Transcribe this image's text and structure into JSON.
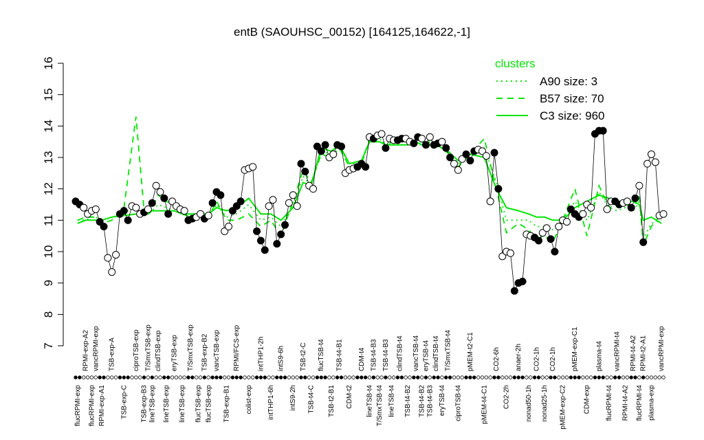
{
  "chart_data": {
    "type": "line",
    "title": "entB (SAOUHSC_00152) [164125,164622,-1]",
    "ylim": [
      7,
      16
    ],
    "yticks": [
      7,
      8,
      9,
      10,
      11,
      12,
      13,
      14,
      15,
      16
    ],
    "legend_title": "clusters",
    "legend": "top-right",
    "groups": [
      {
        "label": "flucRPMI-exp",
        "values": [
          11.6,
          11.5
        ],
        "filled": true
      },
      {
        "label": "RPMI-exp-A2",
        "values": [
          11.4,
          11.2
        ],
        "filled": false
      },
      {
        "label": "flucRPMI-exp",
        "values": [
          11.3
        ],
        "filled": false
      },
      {
        "label": "vancRPMI-exp",
        "values": [
          11.35
        ],
        "filled": false
      },
      {
        "label": "RPMI-exp-A1",
        "values": [
          10.95,
          10.8
        ],
        "filled": true
      },
      {
        "label": "TSB-exp-A",
        "values": [
          9.8,
          9.35,
          9.9
        ],
        "filled": false
      },
      {
        "label": "TSB-exp-C",
        "values": [
          11.2,
          11.3,
          11.0
        ],
        "filled": true
      },
      {
        "label": "ciproTSB-exp",
        "values": [
          11.45,
          11.4,
          11.2
        ],
        "filled": false
      },
      {
        "label": "TSB-exp-B3",
        "values": [
          11.25
        ],
        "filled": true
      },
      {
        "label": "T/SmxTSB-exp",
        "values": [
          11.35
        ],
        "filled": false
      },
      {
        "label": "lineTSB-exp",
        "values": [
          11.55
        ],
        "filled": true
      },
      {
        "label": "clindTSB-exp",
        "values": [
          12.1,
          11.9
        ],
        "filled": false
      },
      {
        "label": "lineTSB-exp",
        "values": [
          11.7,
          11.2
        ],
        "filled": true
      },
      {
        "label": "eryTSB-exp",
        "values": [
          11.6,
          11.45
        ],
        "filled": false
      },
      {
        "label": "lineTSB-exp",
        "values": [
          11.35,
          11.3
        ],
        "filled": false
      },
      {
        "label": "T/SmxTSB-exp",
        "values": [
          11.0,
          11.05
        ],
        "filled": true
      },
      {
        "label": "flucTSB-exp",
        "values": [
          11.1,
          11.2
        ],
        "filled": false
      },
      {
        "label": "TSB-exp-B2",
        "values": [
          11.05
        ],
        "filled": true
      },
      {
        "label": "flucTSB-exp",
        "values": [
          11.15
        ],
        "filled": false
      },
      {
        "label": "vancTSB-exp",
        "values": [
          11.55,
          11.9,
          11.8
        ],
        "filled": true
      },
      {
        "label": "TSB-exp-B1",
        "values": [
          10.65,
          10.8
        ],
        "filled": false
      },
      {
        "label": "RPMI/FCS-exp",
        "values": [
          11.3,
          11.45,
          11.6
        ],
        "filled": true
      },
      {
        "label": "colist-exp",
        "values": [
          12.6,
          12.65,
          12.7
        ],
        "filled": false
      },
      {
        "label": "intTHP1-2h",
        "values": [
          10.65,
          10.35,
          10.05
        ],
        "filled": true
      },
      {
        "label": "intTHP1-6h",
        "values": [
          11.45,
          11.65
        ],
        "filled": false
      },
      {
        "label": "intS9-6h",
        "values": [
          10.25,
          10.55,
          10.85
        ],
        "filled": true
      },
      {
        "label": "intS9-2h",
        "values": [
          11.55,
          11.8,
          11.45
        ],
        "filled": false
      },
      {
        "label": "TSB-t2-C",
        "values": [
          12.8,
          12.55
        ],
        "filled": true
      },
      {
        "label": "TSB-t4-C",
        "values": [
          12.1,
          12.0
        ],
        "filled": false
      },
      {
        "label": "flucTSB-t4",
        "values": [
          13.35,
          13.2,
          13.4
        ],
        "filled": true
      },
      {
        "label": "TSB-t2-B1",
        "values": [
          13.0,
          13.1
        ],
        "filled": false
      },
      {
        "label": "TSB-t4-B1",
        "values": [
          13.4,
          13.35
        ],
        "filled": true
      },
      {
        "label": "CDM-t2",
        "values": [
          12.5,
          12.6,
          12.65
        ],
        "filled": false
      },
      {
        "label": "CDM-t4",
        "values": [
          12.7,
          12.8,
          12.7
        ],
        "filled": true
      },
      {
        "label": "lineTSB-t4",
        "values": [
          13.65
        ],
        "filled": false
      },
      {
        "label": "TSB-t4-B3",
        "values": [
          13.6
        ],
        "filled": true
      },
      {
        "label": "T/SmxTSB-t4",
        "values": [
          13.7,
          13.75
        ],
        "filled": false
      },
      {
        "label": "TSB-t4-B3",
        "values": [
          13.3
        ],
        "filled": true
      },
      {
        "label": "lineTSB-t4",
        "values": [
          13.6,
          13.55
        ],
        "filled": false
      },
      {
        "label": "clindTSB-t4",
        "values": [
          13.55,
          13.6
        ],
        "filled": true
      },
      {
        "label": "TSB-t4-B2",
        "values": [
          13.6,
          13.5
        ],
        "filled": false
      },
      {
        "label": "vancTSB-t4",
        "values": [
          13.45,
          13.65
        ],
        "filled": true
      },
      {
        "label": "TSB-t4-B2",
        "values": [
          13.6
        ],
        "filled": false
      },
      {
        "label": "eryTSB-t4",
        "values": [
          13.4
        ],
        "filled": true
      },
      {
        "label": "TSB-t4-B3",
        "values": [
          13.65
        ],
        "filled": false
      },
      {
        "label": "clindTSB-t4",
        "values": [
          13.4,
          13.45
        ],
        "filled": true
      },
      {
        "label": "eryTSB-t4",
        "values": [
          13.5
        ],
        "filled": false
      },
      {
        "label": "T/SmxTSB-t4",
        "values": [
          13.3,
          13.0
        ],
        "filled": true
      },
      {
        "label": "ciproTSB-t4",
        "values": [
          12.8,
          12.6,
          12.95
        ],
        "filled": false
      },
      {
        "label": "pMEM-t2-C1",
        "values": [
          13.1,
          12.9,
          13.2
        ],
        "filled": true
      },
      {
        "label": "pMEM-t4-C1",
        "values": [
          13.25,
          13.2,
          13.05,
          11.6
        ],
        "filled": false
      },
      {
        "label": "CO2-6h",
        "values": [
          13.15,
          12.0
        ],
        "filled": true
      },
      {
        "label": "CO2-2h",
        "values": [
          9.85,
          10.0,
          9.95
        ],
        "filled": false
      },
      {
        "label": "anaer-2h",
        "values": [
          8.75,
          9.0,
          9.05
        ],
        "filled": true
      },
      {
        "label": "nonad50-1h",
        "values": [
          10.55,
          10.5
        ],
        "filled": false
      },
      {
        "label": "CO2-1h",
        "values": [
          10.45,
          10.35
        ],
        "filled": true
      },
      {
        "label": "nonad25-1h",
        "values": [
          10.6,
          10.75
        ],
        "filled": false
      },
      {
        "label": "CO2-1h",
        "values": [
          10.4,
          10.0
        ],
        "filled": true
      },
      {
        "label": "pMEM-exp-C2",
        "values": [
          10.8,
          11.0,
          10.95
        ],
        "filled": false
      },
      {
        "label": "pMEM-exp-C1",
        "values": [
          11.35,
          11.2,
          11.1
        ],
        "filled": true
      },
      {
        "label": "CDM-exp",
        "values": [
          11.2,
          11.5,
          11.4
        ],
        "filled": false
      },
      {
        "label": "plasma-t4",
        "values": [
          13.75,
          13.85,
          13.85
        ],
        "filled": true
      },
      {
        "label": "flucRPMI-t4",
        "values": [
          11.35,
          11.6
        ],
        "filled": false
      },
      {
        "label": "vancRPMI-t4",
        "values": [
          11.6,
          11.5
        ],
        "filled": true
      },
      {
        "label": "RPMI-t4-A2",
        "values": [
          11.55,
          11.6
        ],
        "filled": false
      },
      {
        "label": "RPMI-t4-A2",
        "values": [
          11.4,
          11.7
        ],
        "filled": true
      },
      {
        "label": "flucRPMI-t4",
        "values": [
          12.1
        ],
        "filled": false
      },
      {
        "label": "RPMI-t2-A1",
        "values": [
          10.3
        ],
        "filled": true
      },
      {
        "label": "plasma-exp",
        "values": [
          12.8,
          13.1,
          12.85
        ],
        "filled": false
      },
      {
        "label": "vancRPMI-exp",
        "values": [
          11.15,
          11.2
        ],
        "filled": false
      }
    ],
    "series": [
      {
        "name": "A90 size: 3",
        "color": "#00e600",
        "style": "dotted",
        "values": [
          11.0,
          11.0,
          11.1,
          11.1,
          11.0,
          11.1,
          11.2,
          11.5,
          11.2,
          11.2,
          11.3,
          11.5,
          11.4,
          11.3,
          11.2,
          11.1,
          11.1,
          11.1,
          11.1,
          11.5,
          11.1,
          11.2,
          11.5,
          11.0,
          11.1,
          10.8,
          11.5,
          12.4,
          12.1,
          13.2,
          13.1,
          13.3,
          12.8,
          12.8,
          13.5,
          13.5,
          13.6,
          13.4,
          13.4,
          13.4,
          13.4,
          13.5,
          13.4,
          13.4,
          13.5,
          13.4,
          13.3,
          13.2,
          12.8,
          13.1,
          13.3,
          12.2,
          11.0,
          11.0,
          11.0,
          10.8,
          10.8,
          10.7,
          11.0,
          11.6,
          11.0,
          11.9,
          11.4,
          11.3,
          11.4,
          11.3,
          11.6,
          10.4,
          10.9,
          11.0
        ]
      },
      {
        "name": "B57 size: 70",
        "color": "#00e600",
        "style": "dashed",
        "values": [
          11.0,
          11.1,
          11.1,
          11.1,
          10.9,
          11.0,
          11.4,
          14.3,
          11.3,
          11.3,
          11.4,
          11.8,
          11.6,
          11.5,
          11.2,
          11.1,
          11.1,
          11.1,
          11.1,
          11.6,
          11.0,
          11.0,
          11.2,
          10.8,
          11.0,
          10.5,
          11.6,
          12.6,
          12.2,
          13.1,
          13.0,
          13.3,
          12.7,
          12.8,
          13.6,
          13.6,
          13.7,
          13.3,
          13.5,
          13.5,
          13.5,
          13.5,
          13.5,
          13.4,
          13.6,
          13.4,
          13.4,
          13.1,
          12.7,
          13.1,
          13.6,
          12.0,
          10.6,
          10.9,
          10.7,
          10.4,
          10.5,
          10.3,
          11.0,
          12.0,
          10.5,
          12.1,
          11.4,
          11.5,
          11.5,
          11.4,
          11.8,
          10.2,
          10.8,
          11.2
        ]
      },
      {
        "name": "C3 size: 960",
        "color": "#00e600",
        "style": "solid",
        "values": [
          10.9,
          11.0,
          11.0,
          11.0,
          11.0,
          11.1,
          11.15,
          11.2,
          11.2,
          11.2,
          11.3,
          11.3,
          11.3,
          11.3,
          11.2,
          11.2,
          11.2,
          11.2,
          11.2,
          11.4,
          11.3,
          11.4,
          11.7,
          11.2,
          11.2,
          11.0,
          11.4,
          12.2,
          12.1,
          13.3,
          13.2,
          13.4,
          12.8,
          12.9,
          13.5,
          13.5,
          13.5,
          13.4,
          13.4,
          13.4,
          13.4,
          13.5,
          13.4,
          13.4,
          13.4,
          13.4,
          13.3,
          13.2,
          12.9,
          13.1,
          13.0,
          12.0,
          11.4,
          11.3,
          11.2,
          11.1,
          11.1,
          11.0,
          11.0,
          11.4,
          11.6,
          11.8,
          11.7,
          11.6,
          11.6,
          11.6,
          11.5,
          11.0,
          11.1,
          10.9
        ]
      }
    ]
  }
}
